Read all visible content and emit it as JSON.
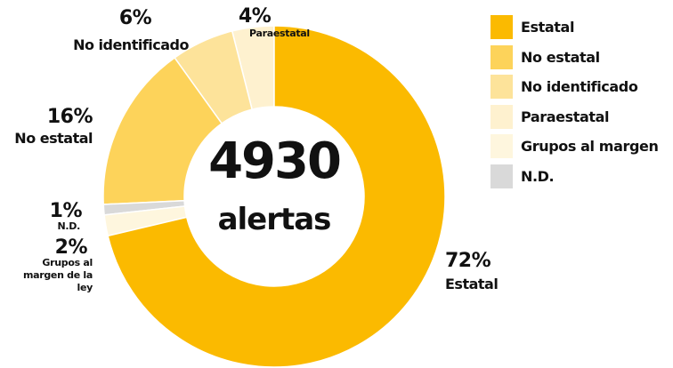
{
  "chart_data": {
    "type": "donut",
    "categories": [
      "Estatal",
      "No estatal",
      "No identificado",
      "Paraestatal",
      "Grupos al margen",
      "N.D."
    ],
    "slice_labels": [
      "Estatal",
      "No estatal",
      "No identificado",
      "Paraestatal",
      "Grupos al margen de la ley",
      "N.D."
    ],
    "values": [
      72,
      16,
      6,
      4,
      2,
      1
    ],
    "value_labels": [
      "72%",
      "16%",
      "6%",
      "4%",
      "2%",
      "1%"
    ],
    "colors": [
      "#FBBA00",
      "#FDD35A",
      "#FDE39A",
      "#FEF1CF",
      "#FEF6DE",
      "#D9D9D9"
    ],
    "total": 4930,
    "center_text": "alertas",
    "legend": "right"
  }
}
